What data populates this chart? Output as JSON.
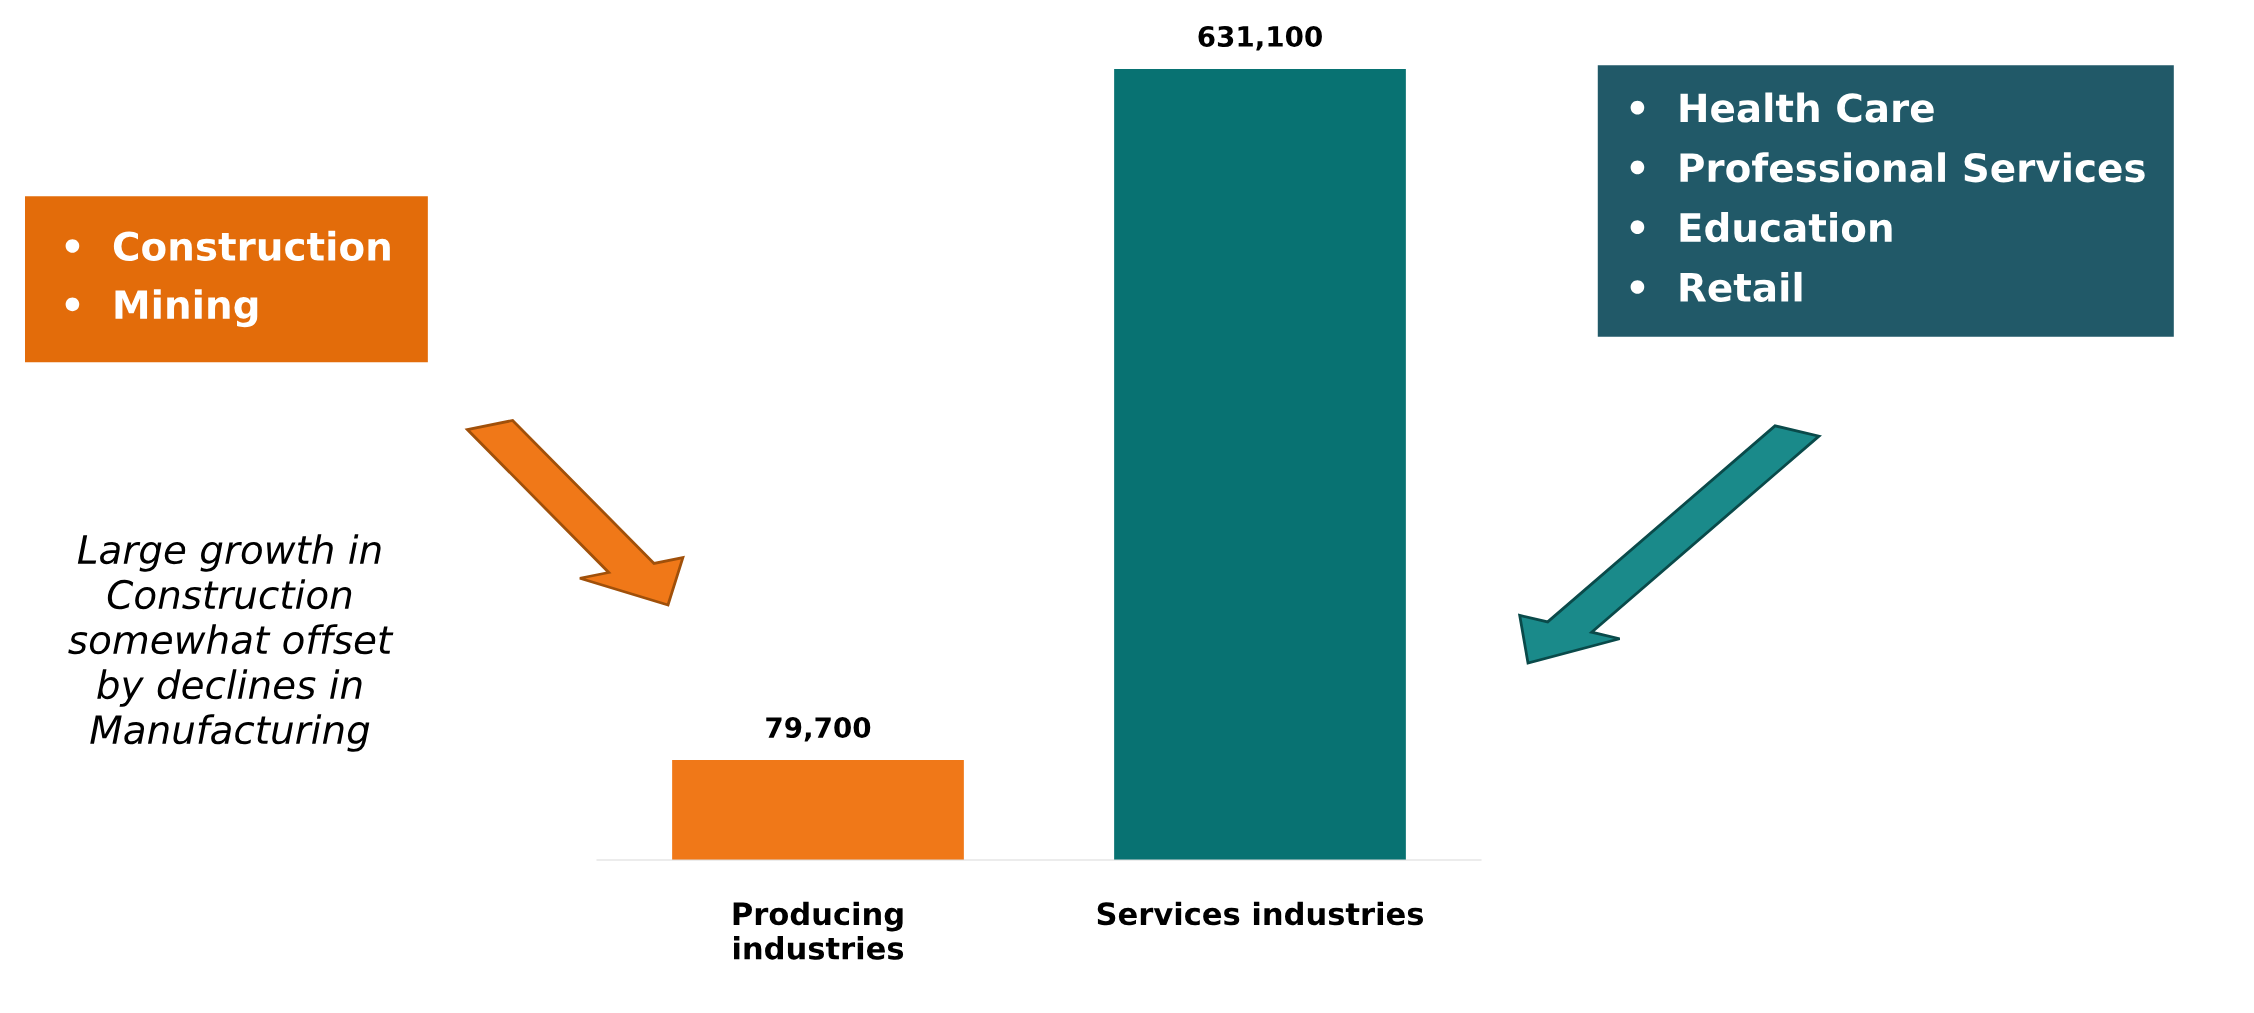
{
  "chart_data": {
    "type": "bar",
    "categories": [
      "Producing\nindustries",
      "Services industries"
    ],
    "values": [
      79700,
      631100
    ],
    "colors": [
      "#f07818",
      "#087272"
    ],
    "data_labels": true,
    "value_labels": [
      "79,700",
      "631,100"
    ],
    "annotations": [
      "•  Construction\n•  Mining",
      "Large growth in\nConstruction\nsomewhat offset\nby declines in\nManufacturing",
      "•  Health Care\n•  Professional Services\n•  Education\n•  Retail"
    ]
  }
}
